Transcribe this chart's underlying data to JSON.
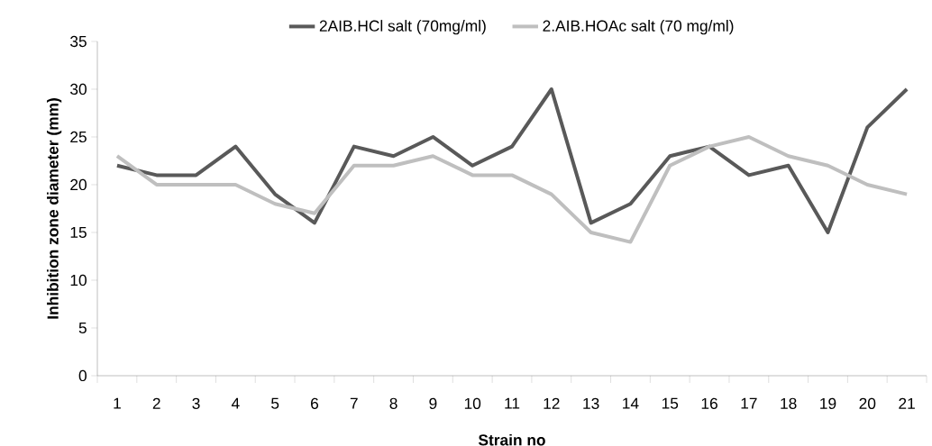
{
  "chart_data": {
    "type": "line",
    "xlabel": "Strain no",
    "ylabel": "Inhibition zone diameter (mm)",
    "categories": [
      "1",
      "2",
      "3",
      "4",
      "5",
      "6",
      "7",
      "8",
      "9",
      "10",
      "11",
      "12",
      "13",
      "14",
      "15",
      "16",
      "17",
      "18",
      "19",
      "20",
      "21"
    ],
    "series": [
      {
        "name": "2AIB.HCl salt (70mg/ml)",
        "color": "#595959",
        "values": [
          22,
          21,
          21,
          24,
          19,
          16,
          24,
          23,
          25,
          22,
          24,
          30,
          16,
          18,
          23,
          24,
          21,
          22,
          15,
          26,
          30
        ]
      },
      {
        "name": "2.AIB.HOAc salt (70 mg/ml)",
        "color": "#bfbfbf",
        "values": [
          23,
          20,
          20,
          20,
          18,
          17,
          22,
          22,
          23,
          21,
          21,
          19,
          15,
          14,
          22,
          24,
          25,
          23,
          22,
          20,
          19
        ]
      }
    ],
    "ylim": [
      0,
      35
    ],
    "yticks": [
      0,
      5,
      10,
      15,
      20,
      25,
      30,
      35
    ],
    "grid": false,
    "legend": "top",
    "marker": "none",
    "line_style": "solid"
  }
}
